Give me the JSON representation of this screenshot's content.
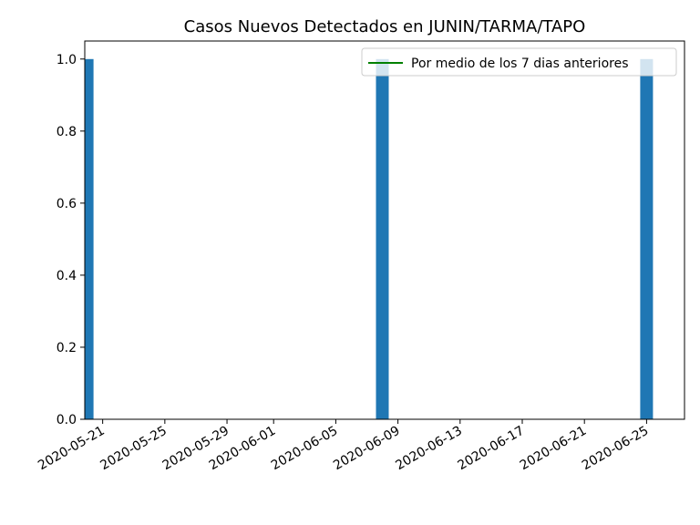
{
  "chart_data": {
    "type": "bar",
    "title": "Casos Nuevos Detectados en JUNIN/TARMA/TAPO",
    "xlabel": "",
    "ylabel": "",
    "x_axis": "date",
    "xlim": [
      "2020-05-20",
      "2020-06-26"
    ],
    "ylim": [
      0,
      1.05
    ],
    "grid": false,
    "x_ticks": [
      "2020-05-21",
      "2020-05-25",
      "2020-05-29",
      "2020-06-01",
      "2020-06-05",
      "2020-06-09",
      "2020-06-13",
      "2020-06-17",
      "2020-06-21",
      "2020-06-25"
    ],
    "y_ticks": [
      "0.0",
      "0.2",
      "0.4",
      "0.6",
      "0.8",
      "1.0"
    ],
    "bar_color": "#1f77b4",
    "series": [
      {
        "type": "bar",
        "points": [
          {
            "x": "2020-05-20",
            "y": 1
          },
          {
            "x": "2020-06-08",
            "y": 1
          },
          {
            "x": "2020-06-25",
            "y": 1
          }
        ]
      },
      {
        "type": "line",
        "name": "Por medio de los 7 dias anteriores",
        "color": "#008000",
        "points": []
      }
    ],
    "legend": {
      "position": "top-right",
      "entries": [
        "Por medio de los 7 dias anteriores"
      ]
    }
  }
}
